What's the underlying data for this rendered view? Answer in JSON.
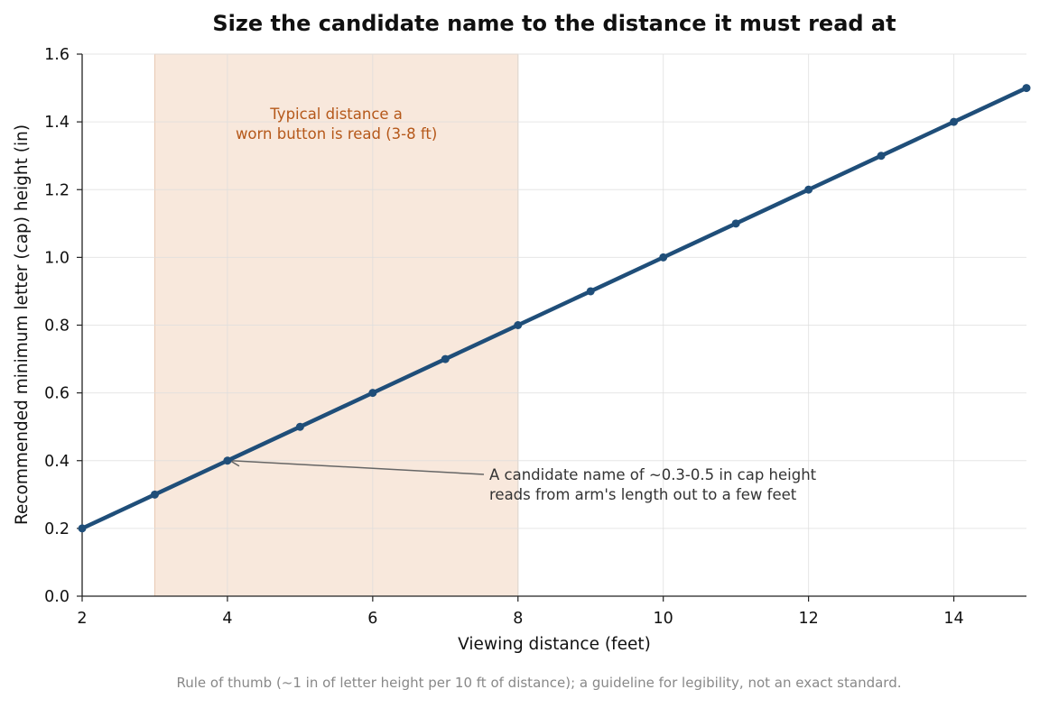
{
  "chart_data": {
    "type": "line",
    "title": "Size the candidate name to the distance it must read at",
    "xlabel": "Viewing distance (feet)",
    "ylabel": "Recommended minimum letter (cap) height (in)",
    "xlim": [
      2,
      15
    ],
    "ylim": [
      0,
      1.6
    ],
    "x_ticks": [
      "2",
      "4",
      "6",
      "8",
      "10",
      "12",
      "14"
    ],
    "y_ticks": [
      "0.0",
      "0.2",
      "0.4",
      "0.6",
      "0.8",
      "1.0",
      "1.2",
      "1.4",
      "1.6"
    ],
    "grid": true,
    "series": [
      {
        "x": [
          2,
          3,
          4,
          5,
          6,
          7,
          8,
          9,
          10,
          11,
          12,
          13,
          14,
          15
        ],
        "y": [
          0.2,
          0.3,
          0.4,
          0.5,
          0.6,
          0.7,
          0.8,
          0.9,
          1.0,
          1.1,
          1.2,
          1.3,
          1.4,
          1.5
        ],
        "color": "#1f4e79"
      }
    ],
    "shaded_band": {
      "x_start": 3,
      "x_end": 8,
      "color": "#f8e8dc",
      "label_lines": [
        "Typical distance a",
        "worn button is read (3-8 ft)"
      ],
      "label_color": "#b5581a"
    },
    "annotation": {
      "point": [
        4,
        0.4
      ],
      "text_lines": [
        "A candidate name of ~0.3-0.5 in cap height",
        "reads from arm's length out to a few feet"
      ]
    },
    "caption": "Rule of thumb (~1 in of letter height per 10 ft of distance); a guideline for legibility, not an exact standard."
  }
}
